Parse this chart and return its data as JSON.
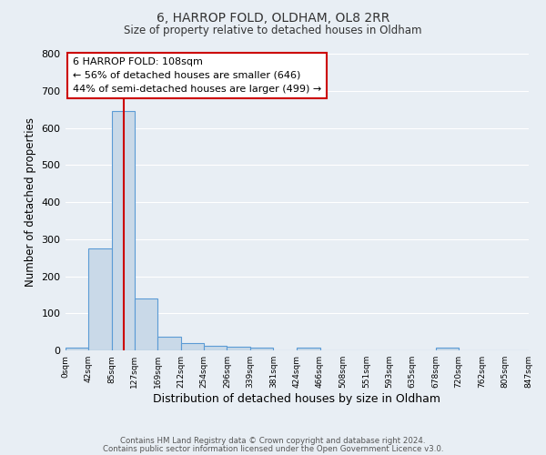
{
  "title": "6, HARROP FOLD, OLDHAM, OL8 2RR",
  "subtitle": "Size of property relative to detached houses in Oldham",
  "xlabel": "Distribution of detached houses by size in Oldham",
  "ylabel": "Number of detached properties",
  "bin_edges": [
    0,
    42,
    85,
    127,
    169,
    212,
    254,
    296,
    339,
    381,
    424,
    466,
    508,
    551,
    593,
    635,
    678,
    720,
    762,
    805,
    847
  ],
  "bar_heights": [
    7,
    275,
    645,
    140,
    38,
    20,
    12,
    10,
    7,
    0,
    7,
    0,
    0,
    0,
    0,
    0,
    7,
    0,
    0,
    0
  ],
  "bar_color": "#c9d9e8",
  "bar_edge_color": "#5b9bd5",
  "property_size": 108,
  "vline_color": "#cc0000",
  "annotation_line1": "6 HARROP FOLD: 108sqm",
  "annotation_line2": "← 56% of detached houses are smaller (646)",
  "annotation_line3": "44% of semi-detached houses are larger (499) →",
  "annotation_box_color": "#ffffff",
  "annotation_box_edge": "#cc0000",
  "ylim": [
    0,
    800
  ],
  "yticks": [
    0,
    100,
    200,
    300,
    400,
    500,
    600,
    700,
    800
  ],
  "background_color": "#e8eef4",
  "grid_color": "#ffffff",
  "footer_line1": "Contains HM Land Registry data © Crown copyright and database right 2024.",
  "footer_line2": "Contains public sector information licensed under the Open Government Licence v3.0."
}
